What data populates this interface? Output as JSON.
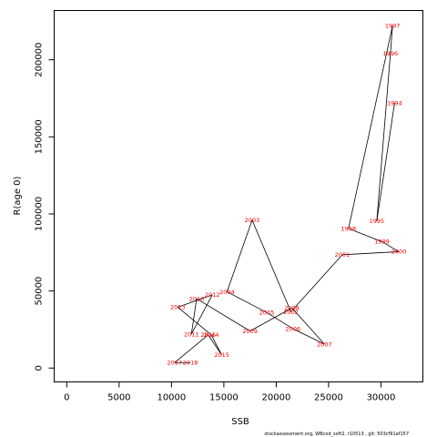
{
  "chart_data": {
    "type": "line",
    "xlabel": "SSB",
    "ylabel": "R(age 0)",
    "xlim": [
      -1200,
      34000
    ],
    "ylim": [
      -9000,
      232000
    ],
    "x_ticks": [
      0,
      5000,
      10000,
      15000,
      20000,
      25000,
      30000
    ],
    "y_ticks": [
      0,
      50000,
      100000,
      150000,
      200000
    ],
    "x_tick_labels": [
      "0",
      "5000",
      "10000",
      "15000",
      "20000",
      "25000",
      "30000"
    ],
    "y_tick_labels": [
      "0",
      "50000",
      "100000",
      "150000",
      "200000"
    ],
    "grid": false,
    "line_color": "#000000",
    "label_color": "#ff0000",
    "points": [
      {
        "year": "1994",
        "x": 31300,
        "y": 172000
      },
      {
        "year": "1995",
        "x": 29600,
        "y": 95500
      },
      {
        "year": "1996",
        "x": 30900,
        "y": 204000
      },
      {
        "year": "1997",
        "x": 31100,
        "y": 222000
      },
      {
        "year": "1998",
        "x": 26900,
        "y": 90500
      },
      {
        "year": "1999",
        "x": 30100,
        "y": 82000
      },
      {
        "year": "2000",
        "x": 31700,
        "y": 75500
      },
      {
        "year": "2001",
        "x": 26300,
        "y": 73500
      },
      {
        "year": "2002",
        "x": 21400,
        "y": 36500
      },
      {
        "year": "2003",
        "x": 17700,
        "y": 96000
      },
      {
        "year": "2004",
        "x": 15300,
        "y": 49500
      },
      {
        "year": "2005",
        "x": 19100,
        "y": 36000
      },
      {
        "year": "2006",
        "x": 21600,
        "y": 25500
      },
      {
        "year": "2007",
        "x": 24600,
        "y": 15500
      },
      {
        "year": "2008",
        "x": 21500,
        "y": 39000
      },
      {
        "year": "2009",
        "x": 17500,
        "y": 24000
      },
      {
        "year": "2010",
        "x": 12400,
        "y": 45000
      },
      {
        "year": "2011",
        "x": 11900,
        "y": 22000
      },
      {
        "year": "2012",
        "x": 13900,
        "y": 47500
      },
      {
        "year": "2013",
        "x": 10600,
        "y": 39500
      },
      {
        "year": "2014",
        "x": 13800,
        "y": 21500
      },
      {
        "year": "2015",
        "x": 14800,
        "y": 8500
      },
      {
        "year": "2016",
        "x": 13500,
        "y": 21500
      },
      {
        "year": "2017",
        "x": 10300,
        "y": 3500
      },
      {
        "year": "2018",
        "x": 11800,
        "y": 3500
      }
    ]
  },
  "footer": {
    "text": "stockassessment.org, WBcod_soft2, r10513 , git: 503cf91af157"
  }
}
